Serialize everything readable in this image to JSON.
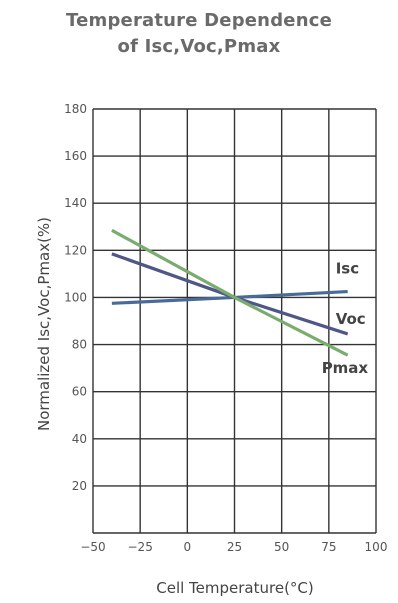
{
  "chart_data": {
    "type": "line",
    "title_line1": "Temperature Dependence",
    "title_line2": "of Isc,Voc,Pmax",
    "xlabel": "Cell Temperature(°C)",
    "ylabel": "Normalized Isc,Voc,Pmax(%)",
    "xlim": [
      -50,
      100
    ],
    "ylim": [
      0,
      180
    ],
    "xticks": [
      -50,
      -25,
      0,
      25,
      50,
      75,
      100
    ],
    "xtick_labels": [
      "−50",
      "−25",
      "0",
      "25",
      "50",
      "75",
      "100"
    ],
    "yticks": [
      20,
      40,
      60,
      80,
      100,
      120,
      140,
      160,
      180
    ],
    "grid": true,
    "series": [
      {
        "name": "Isc",
        "color": "#4a6b9a",
        "x": [
          -40,
          25,
          85
        ],
        "y": [
          97.5,
          100,
          102.5
        ]
      },
      {
        "name": "Voc",
        "color": "#4f5787",
        "x": [
          -40,
          25,
          85
        ],
        "y": [
          118.5,
          100,
          84.5
        ]
      },
      {
        "name": "Pmax",
        "color": "#7aac6f",
        "x": [
          -40,
          25,
          85
        ],
        "y": [
          128.5,
          100,
          75.5
        ]
      }
    ]
  }
}
